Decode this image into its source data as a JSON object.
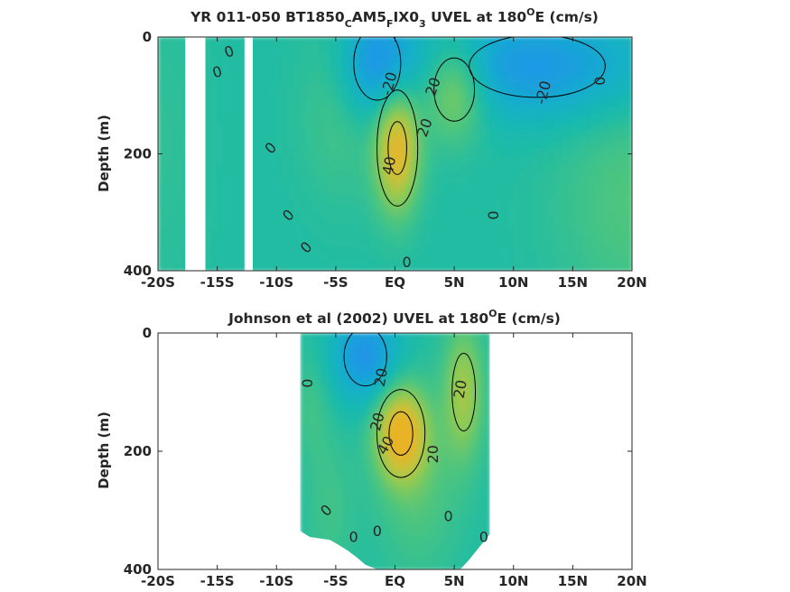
{
  "chart_data": [
    {
      "type": "heatmap",
      "id": "model",
      "title": {
        "main": "YR 011-050 BT1850",
        "sub1": "C",
        "mid1": "AM5",
        "sub2": "F",
        "mid2": "IX0",
        "sub3": "3",
        "mid3": " UVEL at 180",
        "sup": "O",
        "tail": "E (cm/s)"
      },
      "ylabel": "Depth (m)",
      "xlabel": "",
      "xlim": [
        -20,
        20
      ],
      "ylim": [
        400,
        0
      ],
      "x_ticks": [
        -20,
        -15,
        -10,
        -5,
        0,
        5,
        10,
        15,
        20
      ],
      "x_tick_labels": [
        "-20S",
        "-15S",
        "-10S",
        "-5S",
        "EQ",
        "5N",
        "10N",
        "15N",
        "20N"
      ],
      "y_ticks": [
        0,
        200,
        400
      ],
      "y_tick_labels": [
        "0",
        "200",
        "400"
      ],
      "colorscale": [
        "#3a7ce8",
        "#1d9ae3",
        "#12b0c8",
        "#1cbba8",
        "#4cc57f",
        "#8cca55",
        "#c8c23a",
        "#e9b328"
      ],
      "value_range": [
        -40,
        50
      ],
      "data_extent_x": [
        -20,
        20
      ],
      "missing_bands": [
        {
          "x": [
            -17.7,
            -16.0
          ],
          "y": [
            0,
            400
          ]
        },
        {
          "x": [
            -12.7,
            -12.0
          ],
          "y": [
            0,
            400
          ]
        }
      ],
      "features": [
        {
          "x": 0.2,
          "y": 190,
          "value": 48,
          "sx": 1.3,
          "sy": 75
        },
        {
          "x": 5.0,
          "y": 90,
          "value": 30,
          "sx": 1.9,
          "sy": 60
        },
        {
          "x": -1.5,
          "y": 45,
          "value": -30,
          "sx": 2.2,
          "sy": 70
        },
        {
          "x": 12.0,
          "y": 50,
          "value": -28,
          "sx": 7.0,
          "sy": 65
        },
        {
          "x": -4.5,
          "y": 120,
          "value": 10,
          "sx": 2.5,
          "sy": 110
        },
        {
          "x": 20.0,
          "y": 280,
          "value": 12,
          "sx": 4.5,
          "sy": 140
        },
        {
          "x": -20.0,
          "y": 180,
          "value": 4,
          "sx": 3.0,
          "sy": 200
        }
      ],
      "contour_levels": [
        -20,
        0,
        20,
        40
      ],
      "contour_labels": [
        {
          "text": "0",
          "x": -14.0,
          "y": 25,
          "angle": -20
        },
        {
          "text": "0",
          "x": -15.0,
          "y": 60,
          "angle": -15
        },
        {
          "text": "-20",
          "x": -0.5,
          "y": 80,
          "angle": -75
        },
        {
          "text": "20",
          "x": 3.2,
          "y": 85,
          "angle": -70
        },
        {
          "text": "20",
          "x": 2.5,
          "y": 155,
          "angle": -70
        },
        {
          "text": "40",
          "x": -0.5,
          "y": 220,
          "angle": -80
        },
        {
          "text": "0",
          "x": -10.5,
          "y": 190,
          "angle": -45
        },
        {
          "text": "0",
          "x": -9.0,
          "y": 305,
          "angle": -45
        },
        {
          "text": "0",
          "x": -7.5,
          "y": 360,
          "angle": -45
        },
        {
          "text": "0",
          "x": 1.0,
          "y": 385,
          "angle": 0
        },
        {
          "text": "0",
          "x": 8.3,
          "y": 305,
          "angle": -90
        },
        {
          "text": "-20",
          "x": 12.5,
          "y": 95,
          "angle": -75
        },
        {
          "text": "0",
          "x": 17.3,
          "y": 75,
          "angle": -90
        }
      ]
    },
    {
      "type": "heatmap",
      "id": "observations",
      "title": {
        "main": "Johnson et al (2002) UVEL at 180",
        "sup": "O",
        "tail": "E (cm/s)"
      },
      "ylabel": "Depth (m)",
      "xlabel": "",
      "xlim": [
        -20,
        20
      ],
      "ylim": [
        400,
        0
      ],
      "x_ticks": [
        -20,
        -15,
        -10,
        -5,
        0,
        5,
        10,
        15,
        20
      ],
      "x_tick_labels": [
        "-20S",
        "-15S",
        "-10S",
        "-5S",
        "EQ",
        "5N",
        "10N",
        "15N",
        "20N"
      ],
      "y_ticks": [
        0,
        200,
        400
      ],
      "y_tick_labels": [
        "0",
        "200",
        "400"
      ],
      "colorscale": [
        "#3a7ce8",
        "#1d9ae3",
        "#12b0c8",
        "#1cbba8",
        "#4cc57f",
        "#8cca55",
        "#c8c23a",
        "#e9b328"
      ],
      "value_range": [
        -40,
        50
      ],
      "data_extent_x": [
        -8,
        8
      ],
      "bottom_edge": [
        {
          "x": -8.0,
          "y": 335
        },
        {
          "x": -7.2,
          "y": 345
        },
        {
          "x": -5.5,
          "y": 350
        },
        {
          "x": -4.8,
          "y": 358
        },
        {
          "x": -4.0,
          "y": 368
        },
        {
          "x": -3.2,
          "y": 380
        },
        {
          "x": -2.5,
          "y": 392
        },
        {
          "x": -1.5,
          "y": 400
        },
        {
          "x": 5.5,
          "y": 400
        },
        {
          "x": 6.2,
          "y": 385
        },
        {
          "x": 7.0,
          "y": 365
        },
        {
          "x": 8.0,
          "y": 340
        }
      ],
      "features": [
        {
          "x": 0.5,
          "y": 170,
          "value": 50,
          "sx": 1.5,
          "sy": 55
        },
        {
          "x": -2.5,
          "y": 40,
          "value": -30,
          "sx": 2.0,
          "sy": 55
        },
        {
          "x": 5.8,
          "y": 100,
          "value": 28,
          "sx": 1.2,
          "sy": 80
        },
        {
          "x": 2.0,
          "y": 260,
          "value": 12,
          "sx": 2.5,
          "sy": 110
        },
        {
          "x": -5.5,
          "y": 300,
          "value": 8,
          "sx": 1.5,
          "sy": 90
        },
        {
          "x": -7.0,
          "y": 120,
          "value": 8,
          "sx": 1.2,
          "sy": 70
        }
      ],
      "contour_levels": [
        -20,
        0,
        20,
        40
      ],
      "contour_labels": [
        {
          "text": "0",
          "x": -7.4,
          "y": 85,
          "angle": -90
        },
        {
          "text": "20",
          "x": -1.2,
          "y": 75,
          "angle": -80
        },
        {
          "text": "20",
          "x": 5.5,
          "y": 95,
          "angle": -80
        },
        {
          "text": "20",
          "x": -1.5,
          "y": 150,
          "angle": -75
        },
        {
          "text": "40",
          "x": -0.8,
          "y": 190,
          "angle": -60
        },
        {
          "text": "20",
          "x": 3.2,
          "y": 205,
          "angle": -90
        },
        {
          "text": "0",
          "x": -5.8,
          "y": 300,
          "angle": -45
        },
        {
          "text": "0",
          "x": 4.5,
          "y": 310,
          "angle": 0
        },
        {
          "text": "0",
          "x": -1.5,
          "y": 335,
          "angle": 0
        },
        {
          "text": "0",
          "x": -3.5,
          "y": 345,
          "angle": 0
        },
        {
          "text": "0",
          "x": 7.5,
          "y": 345,
          "angle": 0
        }
      ]
    }
  ]
}
